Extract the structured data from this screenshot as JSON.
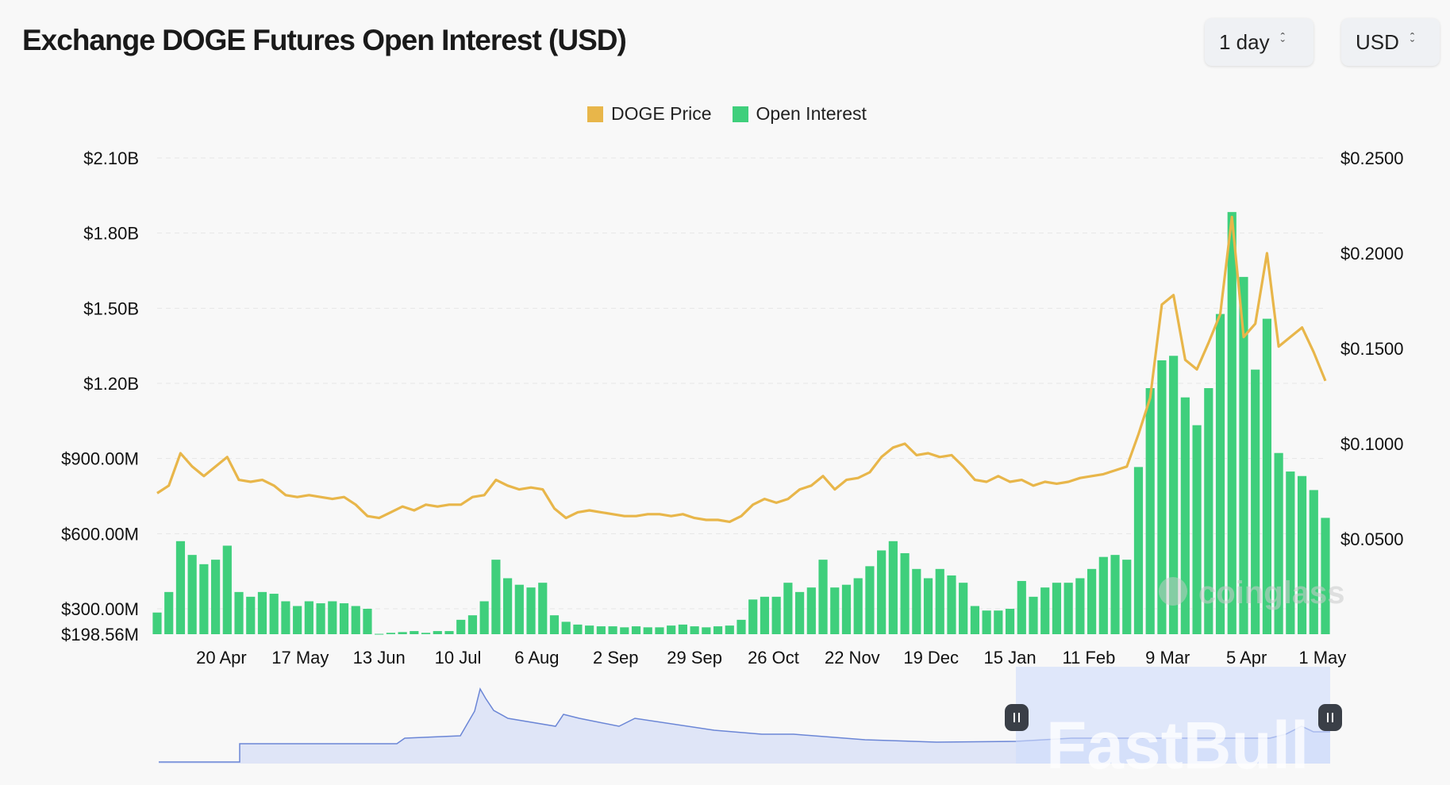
{
  "title": "Exchange DOGE Futures Open Interest (USD)",
  "controls": {
    "period": {
      "value": "1 day",
      "icon": "chevron-up-down-icon"
    },
    "currency": {
      "value": "USD",
      "icon": "chevron-up-down-icon"
    }
  },
  "watermarks": {
    "chart": "coinglass",
    "overlay": "FastBull"
  },
  "colors": {
    "price": "#e8b64a",
    "open_interest": "#3fcf7c",
    "navigator_line": "#6b86d6",
    "navigator_fill": "#dfe5f7",
    "navigator_selection": "#cfdcfb"
  },
  "chart_data": {
    "type": "bar+line",
    "legend": {
      "position": "top-center",
      "items": [
        "DOGE Price",
        "Open Interest"
      ]
    },
    "grid": true,
    "x_tick_labels": [
      {
        "label": "20 Apr",
        "date": "2023-04-20"
      },
      {
        "label": "17 May",
        "date": "2023-05-17"
      },
      {
        "label": "13 Jun",
        "date": "2023-06-13"
      },
      {
        "label": "10 Jul",
        "date": "2023-07-10"
      },
      {
        "label": "6 Aug",
        "date": "2023-08-06"
      },
      {
        "label": "2 Sep",
        "date": "2023-09-02"
      },
      {
        "label": "29 Sep",
        "date": "2023-09-29"
      },
      {
        "label": "26 Oct",
        "date": "2023-10-26"
      },
      {
        "label": "22 Nov",
        "date": "2023-11-22"
      },
      {
        "label": "19 Dec",
        "date": "2023-12-19"
      },
      {
        "label": "15 Jan",
        "date": "2024-01-15"
      },
      {
        "label": "11 Feb",
        "date": "2024-02-11"
      },
      {
        "label": "9 Mar",
        "date": "2024-03-09"
      },
      {
        "label": "5 Apr",
        "date": "2024-04-05"
      },
      {
        "label": "1 May",
        "date": "2024-05-01"
      }
    ],
    "y_left": {
      "unit": "USD millions",
      "range": [
        198.56,
        2100
      ],
      "ticks": [
        {
          "value": 198.56,
          "label": "$198.56M"
        },
        {
          "value": 300,
          "label": "$300.00M"
        },
        {
          "value": 600,
          "label": "$600.00M"
        },
        {
          "value": 900,
          "label": "$900.00M"
        },
        {
          "value": 1200,
          "label": "$1.20B"
        },
        {
          "value": 1500,
          "label": "$1.50B"
        },
        {
          "value": 1800,
          "label": "$1.80B"
        },
        {
          "value": 2100,
          "label": "$2.10B"
        }
      ]
    },
    "y_right": {
      "unit": "USD",
      "range": [
        0,
        0.25
      ],
      "ticks": [
        {
          "value": 0.05,
          "label": "$0.0500"
        },
        {
          "value": 0.1,
          "label": "$0.1000"
        },
        {
          "value": 0.15,
          "label": "$0.1500"
        },
        {
          "value": 0.2,
          "label": "$0.2000"
        },
        {
          "value": 0.25,
          "label": "$0.2500"
        }
      ]
    },
    "dates": [
      "2023-03-29",
      "2023-04-02",
      "2023-04-06",
      "2023-04-10",
      "2023-04-14",
      "2023-04-18",
      "2023-04-22",
      "2023-04-26",
      "2023-04-30",
      "2023-05-04",
      "2023-05-08",
      "2023-05-12",
      "2023-05-16",
      "2023-05-20",
      "2023-05-24",
      "2023-05-28",
      "2023-06-01",
      "2023-06-05",
      "2023-06-09",
      "2023-06-13",
      "2023-06-17",
      "2023-06-21",
      "2023-06-25",
      "2023-06-29",
      "2023-07-03",
      "2023-07-07",
      "2023-07-11",
      "2023-07-15",
      "2023-07-19",
      "2023-07-23",
      "2023-07-27",
      "2023-07-31",
      "2023-08-04",
      "2023-08-08",
      "2023-08-12",
      "2023-08-16",
      "2023-08-20",
      "2023-08-24",
      "2023-08-28",
      "2023-09-01",
      "2023-09-05",
      "2023-09-09",
      "2023-09-13",
      "2023-09-17",
      "2023-09-21",
      "2023-09-25",
      "2023-09-29",
      "2023-10-03",
      "2023-10-07",
      "2023-10-11",
      "2023-10-15",
      "2023-10-19",
      "2023-10-23",
      "2023-10-27",
      "2023-10-31",
      "2023-11-04",
      "2023-11-08",
      "2023-11-12",
      "2023-11-16",
      "2023-11-20",
      "2023-11-24",
      "2023-11-28",
      "2023-12-02",
      "2023-12-06",
      "2023-12-10",
      "2023-12-14",
      "2023-12-18",
      "2023-12-22",
      "2023-12-26",
      "2023-12-30",
      "2024-01-03",
      "2024-01-07",
      "2024-01-11",
      "2024-01-15",
      "2024-01-19",
      "2024-01-23",
      "2024-01-27",
      "2024-01-31",
      "2024-02-04",
      "2024-02-08",
      "2024-02-12",
      "2024-02-16",
      "2024-02-20",
      "2024-02-24",
      "2024-02-28",
      "2024-03-03",
      "2024-03-07",
      "2024-03-11",
      "2024-03-15",
      "2024-03-19",
      "2024-03-23",
      "2024-03-27",
      "2024-03-31",
      "2024-04-04",
      "2024-04-08",
      "2024-04-12",
      "2024-04-16",
      "2024-04-20",
      "2024-04-24",
      "2024-04-28",
      "2024-05-02"
    ],
    "series": [
      {
        "name": "Open Interest",
        "type": "bar",
        "axis": "left",
        "values": [
          285,
          367,
          570,
          515,
          478,
          496,
          552,
          367,
          348,
          367,
          360,
          330,
          311,
          330,
          322,
          330,
          322,
          311,
          300,
          200,
          204,
          207,
          211,
          204,
          211,
          211,
          256,
          274,
          330,
          496,
          422,
          396,
          385,
          404,
          274,
          248,
          237,
          233,
          230,
          230,
          226,
          230,
          226,
          226,
          233,
          237,
          230,
          226,
          230,
          233,
          256,
          337,
          348,
          348,
          404,
          367,
          385,
          496,
          385,
          396,
          422,
          470,
          533,
          570,
          522,
          459,
          422,
          459,
          433,
          404,
          311,
          293,
          293,
          300,
          411,
          348,
          385,
          404,
          404,
          422,
          459,
          507,
          515,
          496,
          866,
          1181,
          1292,
          1310,
          1144,
          1033,
          1181,
          1477,
          1884,
          1625,
          1255,
          1458,
          922,
          848,
          830,
          774,
          663
        ]
      },
      {
        "name": "DOGE Price",
        "type": "line",
        "axis": "right",
        "values": [
          0.074,
          0.078,
          0.095,
          0.088,
          0.083,
          0.088,
          0.093,
          0.081,
          0.08,
          0.081,
          0.078,
          0.073,
          0.072,
          0.073,
          0.072,
          0.071,
          0.072,
          0.068,
          0.062,
          0.061,
          0.064,
          0.067,
          0.065,
          0.068,
          0.067,
          0.068,
          0.068,
          0.072,
          0.073,
          0.081,
          0.078,
          0.076,
          0.077,
          0.076,
          0.066,
          0.061,
          0.064,
          0.065,
          0.064,
          0.063,
          0.062,
          0.062,
          0.063,
          0.063,
          0.062,
          0.063,
          0.061,
          0.06,
          0.06,
          0.059,
          0.062,
          0.068,
          0.071,
          0.069,
          0.071,
          0.076,
          0.078,
          0.083,
          0.076,
          0.081,
          0.082,
          0.085,
          0.093,
          0.098,
          0.1,
          0.094,
          0.095,
          0.093,
          0.094,
          0.088,
          0.081,
          0.08,
          0.083,
          0.08,
          0.081,
          0.078,
          0.08,
          0.079,
          0.08,
          0.082,
          0.083,
          0.084,
          0.086,
          0.088,
          0.105,
          0.124,
          0.173,
          0.178,
          0.144,
          0.139,
          0.153,
          0.168,
          0.219,
          0.156,
          0.163,
          0.2,
          0.151,
          0.156,
          0.161,
          0.148,
          0.133
        ]
      }
    ]
  }
}
